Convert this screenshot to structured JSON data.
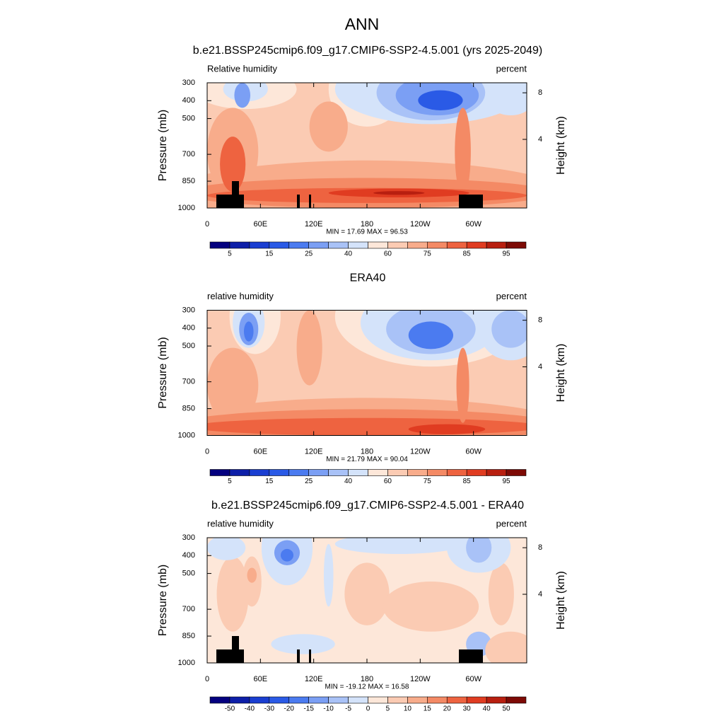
{
  "title": "ANN",
  "chart_data": [
    {
      "type": "contour",
      "title": "b.e21.BSSP245cmip6.f09_g17.CMIP6-SSP2-4.5.001 (yrs 2025-2049)",
      "left_label": "Relative humidity",
      "right_label": "percent",
      "ylabel": "Pressure (mb)",
      "y2label": "Height (km)",
      "stats": "MIN =  17.69  MAX =  96.53",
      "xlim": [
        0,
        360
      ],
      "xticks": [
        0,
        {
          "value": 60,
          "label": "60E"
        },
        {
          "value": 120,
          "label": "120E"
        },
        180,
        {
          "value": 240,
          "label": "120W"
        },
        {
          "value": 300,
          "label": "60W"
        }
      ],
      "ylim": [
        1000,
        300
      ],
      "yticks": [
        300,
        400,
        500,
        700,
        850,
        1000
      ],
      "y2ticks": [
        4,
        8
      ],
      "colorbar_colors": [
        "#04007f",
        "#0d1fa8",
        "#1a3ed1",
        "#2a5ae6",
        "#4b7bf0",
        "#7b9ff4",
        "#a9c2f7",
        "#d4e3fa",
        "#fde7d9",
        "#fbcbb3",
        "#f8ac8b",
        "#f48a65",
        "#ee6340",
        "#e03c21",
        "#b81f10",
        "#7d0a05"
      ],
      "colorbar_ticks": [
        5,
        15,
        25,
        40,
        60,
        75,
        85,
        95
      ]
    },
    {
      "type": "contour",
      "title": "ERA40",
      "left_label": "relative humidity",
      "right_label": "percent",
      "ylabel": "Pressure (mb)",
      "y2label": "Height (km)",
      "stats": "MIN =  21.79  MAX =  90.04",
      "xlim": [
        0,
        360
      ],
      "xticks": [
        0,
        {
          "value": 60,
          "label": "60E"
        },
        {
          "value": 120,
          "label": "120E"
        },
        180,
        {
          "value": 240,
          "label": "120W"
        },
        {
          "value": 300,
          "label": "60W"
        }
      ],
      "ylim": [
        1000,
        300
      ],
      "yticks": [
        300,
        400,
        500,
        700,
        850,
        1000
      ],
      "y2ticks": [
        4,
        8
      ],
      "colorbar_colors": [
        "#04007f",
        "#0d1fa8",
        "#1a3ed1",
        "#2a5ae6",
        "#4b7bf0",
        "#7b9ff4",
        "#a9c2f7",
        "#d4e3fa",
        "#fde7d9",
        "#fbcbb3",
        "#f8ac8b",
        "#f48a65",
        "#ee6340",
        "#e03c21",
        "#b81f10",
        "#7d0a05"
      ],
      "colorbar_ticks": [
        5,
        15,
        25,
        40,
        60,
        75,
        85,
        95
      ]
    },
    {
      "type": "contour",
      "title": "b.e21.BSSP245cmip6.f09_g17.CMIP6-SSP2-4.5.001 - ERA40",
      "left_label": "relative humidity",
      "right_label": "percent",
      "ylabel": "Pressure (mb)",
      "y2label": "Height (km)",
      "stats": "MIN = -19.12  MAX =  16.58",
      "xlim": [
        0,
        360
      ],
      "xticks": [
        0,
        {
          "value": 60,
          "label": "60E"
        },
        {
          "value": 120,
          "label": "120E"
        },
        180,
        {
          "value": 240,
          "label": "120W"
        },
        {
          "value": 300,
          "label": "60W"
        }
      ],
      "ylim": [
        1000,
        300
      ],
      "yticks": [
        300,
        400,
        500,
        700,
        850,
        1000
      ],
      "y2ticks": [
        4,
        8
      ],
      "colorbar_colors": [
        "#04007f",
        "#0d1fa8",
        "#1a3ed1",
        "#2a5ae6",
        "#4b7bf0",
        "#7b9ff4",
        "#a9c2f7",
        "#d4e3fa",
        "#fde7d9",
        "#fbcbb3",
        "#f8ac8b",
        "#f48a65",
        "#ee6340",
        "#e03c21",
        "#b81f10",
        "#7d0a05"
      ],
      "colorbar_ticks": [
        -50,
        -40,
        -30,
        -20,
        -15,
        -10,
        -5,
        0,
        5,
        10,
        15,
        20,
        30,
        40,
        50
      ]
    }
  ]
}
